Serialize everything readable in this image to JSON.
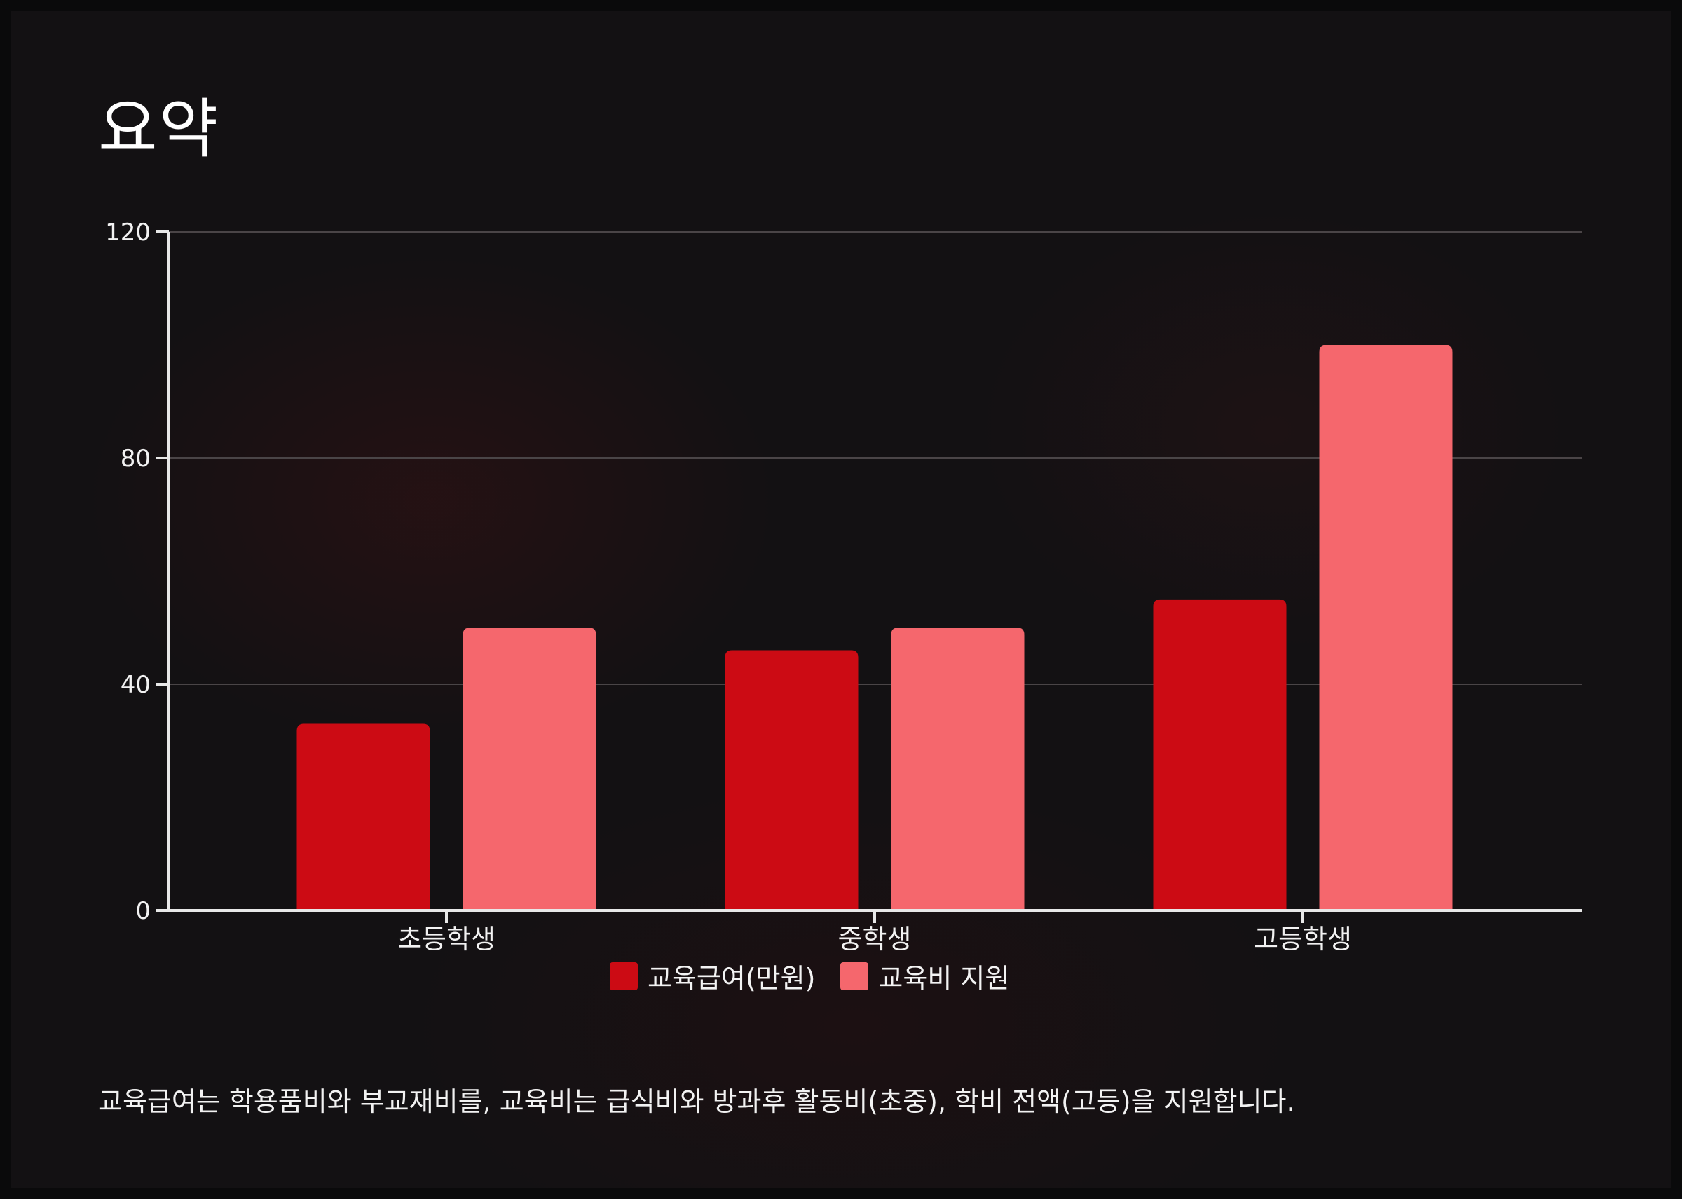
{
  "page": {
    "title": "요약",
    "caption": "교육급여는 학용품비와 부교재비를, 교육비는 급식비와 방과후 활동비(초중), 학비 전액(고등)을 지원합니다."
  },
  "colors": {
    "background": "#131113",
    "series_1": "#cc0b14",
    "series_2": "#f5676d",
    "axis": "#e8e8e8",
    "grid": "#4a4547",
    "text": "#f2f2f2"
  },
  "chart_data": {
    "type": "bar",
    "title": "",
    "xlabel": "",
    "ylabel": "",
    "categories": [
      "초등학생",
      "중학생",
      "고등학생"
    ],
    "series": [
      {
        "name": "교육급여(만원)",
        "color": "#cc0b14",
        "values": [
          33,
          46,
          55
        ]
      },
      {
        "name": "교육비 지원",
        "color": "#f5676d",
        "values": [
          50,
          50,
          100
        ]
      }
    ],
    "ylim": [
      0,
      120
    ],
    "yticks": [
      0,
      40,
      80,
      120
    ],
    "ytick_labels": [
      "0",
      "40",
      "80",
      "120"
    ],
    "grid": true,
    "legend_position": "bottom-center"
  }
}
